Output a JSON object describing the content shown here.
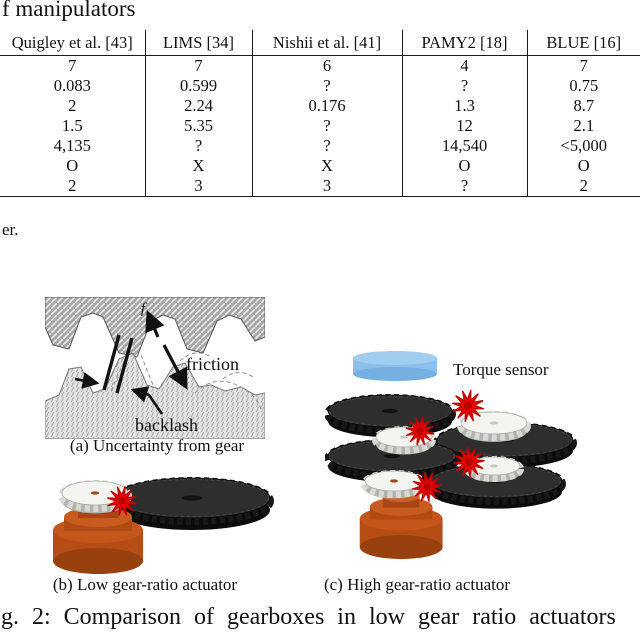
{
  "page": {
    "title_fragment": "f manipulators",
    "footnote_fragment": "er.",
    "bottom_caption": "g. 2: Comparison of gearboxes in low gear ratio actuators"
  },
  "table": {
    "headers": [
      "Quigley et al. [43]",
      "LIMS [34]",
      "Nishii et al. [41]",
      "PAMY2 [18]",
      "BLUE [16]"
    ],
    "rows": [
      [
        "7",
        "7",
        "6",
        "4",
        "7"
      ],
      [
        "0.083",
        "0.599",
        "?",
        "?",
        "0.75"
      ],
      [
        "2",
        "2.24",
        "0.176",
        "1.3",
        "8.7"
      ],
      [
        "1.5",
        "5.35",
        "?",
        "12",
        "2.1"
      ],
      [
        "4,135",
        "?",
        "?",
        "14,540",
        "<5,000"
      ],
      [
        "O",
        "X",
        "X",
        "O",
        "O"
      ],
      [
        "2",
        "3",
        "3",
        "?",
        "2"
      ]
    ]
  },
  "figure": {
    "panel_a": {
      "caption": "(a) Uncertainty from gear",
      "label_f": "f",
      "label_friction": "friction",
      "label_backlash": "backlash"
    },
    "panel_b": {
      "caption": "(b) Low gear-ratio actuator"
    },
    "panel_c": {
      "caption": "(c) High gear-ratio actuator",
      "torque_sensor_label": "Torque sensor"
    },
    "colors": {
      "torque_sensor_blue": "#8cc0ea",
      "motor_orange": "#b64d15",
      "dark_gear_face": "#2e2e2e",
      "white_gear_face": "#f4f4f0",
      "starburst_red": "#ee0000"
    }
  }
}
